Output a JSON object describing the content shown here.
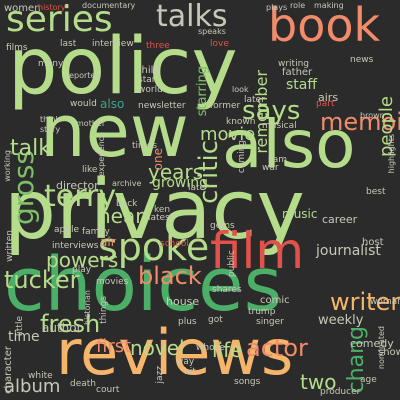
{
  "colors": {
    "background": "#2b2b2b",
    "green": "#7fbf6a",
    "lime": "#b5dc8a",
    "salmon": "#f28b6a",
    "orange": "#f5b56b",
    "red": "#e0524a",
    "teal": "#3fa38a",
    "grey": "#c8c8b8",
    "darkgreen": "#4caf68"
  },
  "words": [
    {
      "text": "policy",
      "color": "lime"
    },
    {
      "text": "privacy",
      "color": "lime"
    },
    {
      "text": "choices",
      "color": "darkgreen"
    },
    {
      "text": "new",
      "color": "lime"
    },
    {
      "text": "also",
      "color": "lime"
    },
    {
      "text": "reviews",
      "color": "orange"
    },
    {
      "text": "book",
      "color": "salmon"
    },
    {
      "text": "film",
      "color": "red"
    },
    {
      "text": "spoke",
      "color": "lime"
    },
    {
      "text": "series",
      "color": "lime"
    },
    {
      "text": "terry",
      "color": "lime"
    },
    {
      "text": "talks",
      "color": "grey"
    },
    {
      "text": "writer",
      "color": "orange"
    },
    {
      "text": "gross",
      "color": "green"
    },
    {
      "text": "says",
      "color": "lime"
    },
    {
      "text": "memoir",
      "color": "salmon"
    },
    {
      "text": "critic",
      "color": "lime"
    },
    {
      "text": "tucker",
      "color": "lime"
    },
    {
      "text": "black",
      "color": "salmon"
    },
    {
      "text": "fresh",
      "color": "lime"
    },
    {
      "text": "actor",
      "color": "salmon"
    },
    {
      "text": "novel",
      "color": "lime"
    },
    {
      "text": "chang",
      "color": "darkgreen"
    },
    {
      "text": "talk",
      "color": "lime"
    },
    {
      "text": "powers",
      "color": "lime"
    },
    {
      "text": "movie",
      "color": "lime"
    },
    {
      "text": "years",
      "color": "lime"
    },
    {
      "text": "hear",
      "color": "lime"
    },
    {
      "text": "two",
      "color": "lime"
    },
    {
      "text": "people",
      "color": "lime"
    },
    {
      "text": "album",
      "color": "grey"
    },
    {
      "text": "first",
      "color": "salmon"
    },
    {
      "text": "life",
      "color": "lime"
    },
    {
      "text": "time",
      "color": "grey"
    },
    {
      "text": "remember",
      "color": "lime"
    },
    {
      "text": "growing",
      "color": "lime"
    },
    {
      "text": "journalist",
      "color": "grey"
    },
    {
      "text": "women",
      "color": "grey"
    },
    {
      "text": "history",
      "color": "red"
    },
    {
      "text": "documentary",
      "color": "grey"
    },
    {
      "text": "role",
      "color": "grey"
    },
    {
      "text": "making",
      "color": "grey"
    },
    {
      "text": "plays",
      "color": "grey"
    },
    {
      "text": "films",
      "color": "grey"
    },
    {
      "text": "last",
      "color": "grey"
    },
    {
      "text": "interview",
      "color": "grey"
    },
    {
      "text": "three",
      "color": "red"
    },
    {
      "text": "love",
      "color": "red"
    },
    {
      "text": "also",
      "color": "teal"
    },
    {
      "text": "many",
      "color": "grey"
    },
    {
      "text": "reporter",
      "color": "grey"
    },
    {
      "text": "child",
      "color": "grey"
    },
    {
      "text": "star",
      "color": "grey"
    },
    {
      "text": "world",
      "color": "grey"
    },
    {
      "text": "starring",
      "color": "green"
    },
    {
      "text": "staff",
      "color": "lime"
    },
    {
      "text": "father",
      "color": "grey"
    },
    {
      "text": "writing",
      "color": "grey"
    },
    {
      "text": "later",
      "color": "grey"
    },
    {
      "text": "news",
      "color": "grey"
    },
    {
      "text": "airs",
      "color": "grey"
    },
    {
      "text": "part",
      "color": "red"
    },
    {
      "text": "newsletter",
      "color": "grey"
    },
    {
      "text": "former",
      "color": "grey"
    },
    {
      "text": "would",
      "color": "grey"
    },
    {
      "text": "think",
      "color": "grey"
    },
    {
      "text": "story",
      "color": "grey"
    },
    {
      "text": "times",
      "color": "grey"
    },
    {
      "text": "director",
      "color": "grey"
    },
    {
      "text": "like",
      "color": "grey"
    },
    {
      "text": "one",
      "color": "salmon"
    },
    {
      "text": "late",
      "color": "grey"
    },
    {
      "text": "musical",
      "color": "grey"
    },
    {
      "text": "sam",
      "color": "grey"
    },
    {
      "text": "war",
      "color": "grey"
    },
    {
      "text": "best",
      "color": "grey"
    },
    {
      "text": "highlights",
      "color": "grey"
    },
    {
      "text": "working",
      "color": "grey"
    },
    {
      "text": "archive",
      "color": "grey"
    },
    {
      "text": "back",
      "color": "grey"
    },
    {
      "text": "ken",
      "color": "grey"
    },
    {
      "text": "latest",
      "color": "grey"
    },
    {
      "text": "gems",
      "color": "grey"
    },
    {
      "text": "music",
      "color": "lime"
    },
    {
      "text": "career",
      "color": "grey"
    },
    {
      "text": "interviews",
      "color": "grey"
    },
    {
      "text": "apple",
      "color": "grey"
    },
    {
      "text": "family",
      "color": "grey"
    },
    {
      "text": "air",
      "color": "salmon"
    },
    {
      "text": "school",
      "color": "red"
    },
    {
      "text": "host",
      "color": "grey"
    },
    {
      "text": "play",
      "color": "grey"
    },
    {
      "text": "movies",
      "color": "grey"
    },
    {
      "text": "house",
      "color": "grey"
    },
    {
      "text": "shares",
      "color": "grey"
    },
    {
      "text": "comic",
      "color": "grey"
    },
    {
      "text": "trump",
      "color": "grey"
    },
    {
      "text": "author",
      "color": "grey"
    },
    {
      "text": "weekly",
      "color": "grey"
    },
    {
      "text": "historian",
      "color": "grey"
    },
    {
      "text": "singer",
      "color": "grey"
    },
    {
      "text": "woman",
      "color": "grey"
    },
    {
      "text": "comedy",
      "color": "grey"
    },
    {
      "text": "whose",
      "color": "grey"
    },
    {
      "text": "nominated",
      "color": "grey"
    },
    {
      "text": "character",
      "color": "grey"
    },
    {
      "text": "white",
      "color": "grey"
    },
    {
      "text": "death",
      "color": "grey"
    },
    {
      "text": "court",
      "color": "grey"
    },
    {
      "text": "songs",
      "color": "grey"
    },
    {
      "text": "producer",
      "color": "grey"
    },
    {
      "text": "age",
      "color": "grey"
    },
    {
      "text": "show",
      "color": "grey"
    },
    {
      "text": "way",
      "color": "grey"
    },
    {
      "text": "jazz",
      "color": "grey"
    },
    {
      "text": "hit",
      "color": "grey"
    },
    {
      "text": "plus",
      "color": "grey"
    },
    {
      "text": "got",
      "color": "grey"
    },
    {
      "text": "little",
      "color": "grey"
    },
    {
      "text": "things",
      "color": "grey"
    },
    {
      "text": "written",
      "color": "grey"
    },
    {
      "text": "speaks",
      "color": "grey"
    },
    {
      "text": "look",
      "color": "grey"
    },
    {
      "text": "known",
      "color": "grey"
    },
    {
      "text": "coming",
      "color": "grey"
    },
    {
      "text": "brown",
      "color": "grey"
    },
    {
      "text": "experience",
      "color": "grey"
    },
    {
      "text": "mother",
      "color": "grey"
    },
    {
      "text": "public",
      "color": "grey"
    }
  ]
}
